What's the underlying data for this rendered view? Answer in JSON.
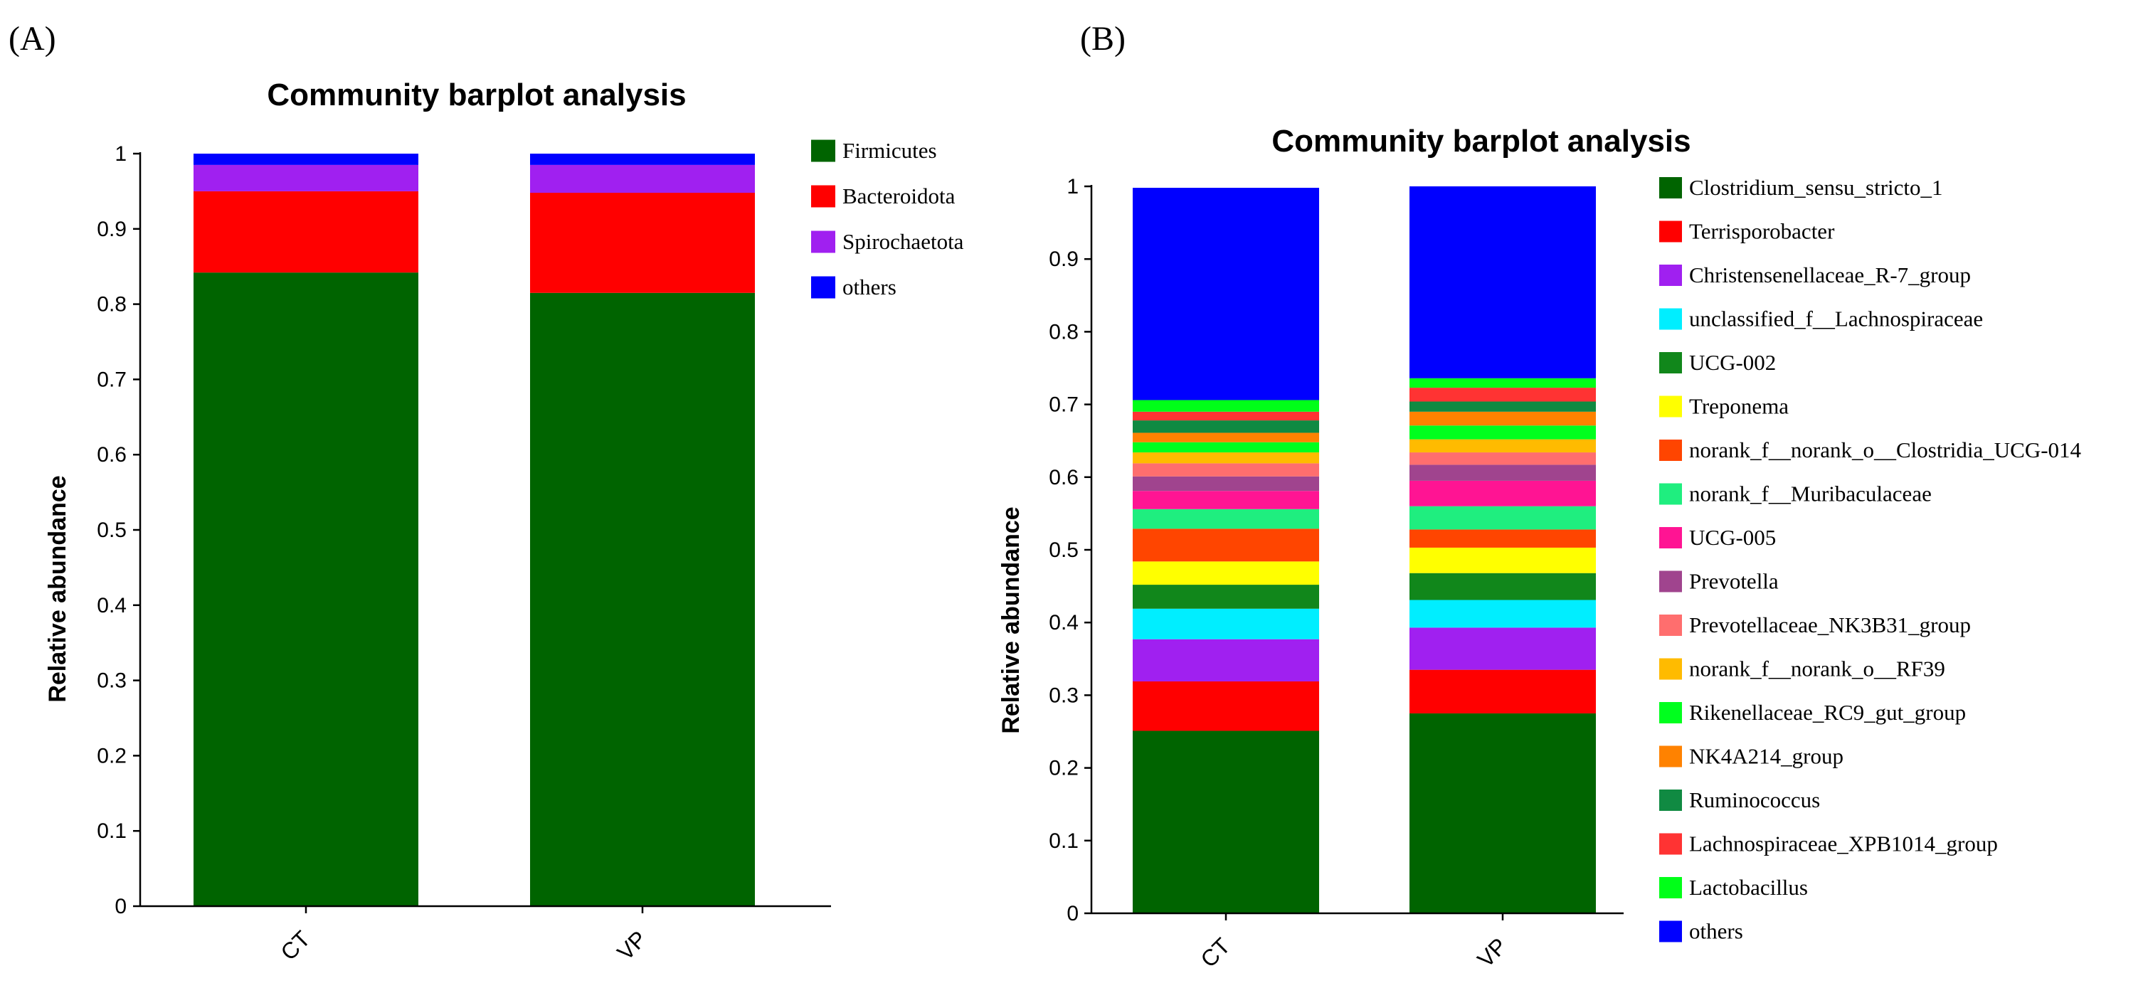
{
  "chart_data": [
    {
      "panel_label": "(A)",
      "type": "bar",
      "stacked": true,
      "title": "Community barplot analysis",
      "xlabel": "",
      "ylabel": "Relative abundance",
      "ylim": [
        0,
        1
      ],
      "yticks": [
        "0",
        "0.1",
        "0.2",
        "0.3",
        "0.4",
        "0.5",
        "0.6",
        "0.7",
        "0.8",
        "0.9",
        "1"
      ],
      "categories": [
        "CT",
        "VP"
      ],
      "legend_position": "right",
      "series": [
        {
          "name": "Firmicutes",
          "color": "#006400",
          "values": [
            0.842,
            0.815
          ]
        },
        {
          "name": "Bacteroidota",
          "color": "#ff0000",
          "values": [
            0.108,
            0.133
          ]
        },
        {
          "name": "Spirochaetota",
          "color": "#a020f0",
          "values": [
            0.035,
            0.037
          ]
        },
        {
          "name": "others",
          "color": "#0000ff",
          "values": [
            0.015,
            0.015
          ]
        }
      ]
    },
    {
      "panel_label": "(B)",
      "type": "bar",
      "stacked": true,
      "title": "Community barplot analysis",
      "xlabel": "",
      "ylabel": "Relative abundance",
      "ylim": [
        0,
        1
      ],
      "yticks": [
        "0",
        "0.1",
        "0.2",
        "0.3",
        "0.4",
        "0.5",
        "0.6",
        "0.7",
        "0.8",
        "0.9",
        "1"
      ],
      "categories": [
        "CT",
        "VP"
      ],
      "legend_position": "right",
      "series": [
        {
          "name": "Clostridium_sensu_stricto_1",
          "color": "#006400",
          "values": [
            0.251,
            0.275
          ]
        },
        {
          "name": "Terrisporobacter",
          "color": "#ff0000",
          "values": [
            0.068,
            0.06
          ]
        },
        {
          "name": "Christensenellaceae_R-7_group",
          "color": "#a020f0",
          "values": [
            0.058,
            0.058
          ]
        },
        {
          "name": "unclassified_f__Lachnospiraceae",
          "color": "#00eeff",
          "values": [
            0.042,
            0.038
          ]
        },
        {
          "name": "UCG-002",
          "color": "#11871b",
          "values": [
            0.033,
            0.037
          ]
        },
        {
          "name": "Treponema",
          "color": "#ffff00",
          "values": [
            0.032,
            0.035
          ]
        },
        {
          "name": "norank_f__norank_o__Clostridia_UCG-014",
          "color": "#ff4500",
          "values": [
            0.045,
            0.025
          ]
        },
        {
          "name": "norank_f__Muribaculaceae",
          "color": "#1fee7f",
          "values": [
            0.027,
            0.032
          ]
        },
        {
          "name": "UCG-005",
          "color": "#ff1493",
          "values": [
            0.025,
            0.035
          ]
        },
        {
          "name": "Prevotella",
          "color": "#a0448e",
          "values": [
            0.02,
            0.022
          ]
        },
        {
          "name": "Prevotellaceae_NK3B31_group",
          "color": "#ff6e6e",
          "values": [
            0.018,
            0.017
          ]
        },
        {
          "name": "norank_f__norank_o__RF39",
          "color": "#ffbb00",
          "values": [
            0.015,
            0.018
          ]
        },
        {
          "name": "Rikenellaceae_RC9_gut_group",
          "color": "#00ff1e",
          "values": [
            0.014,
            0.019
          ]
        },
        {
          "name": "NK4A214_group",
          "color": "#ff8200",
          "values": [
            0.013,
            0.019
          ]
        },
        {
          "name": "Ruminococcus",
          "color": "#108a42",
          "values": [
            0.017,
            0.014
          ]
        },
        {
          "name": "Lachnospiraceae_XPB1014_group",
          "color": "#ff3333",
          "values": [
            0.012,
            0.019
          ]
        },
        {
          "name": "Lactobacillus",
          "color": "#00ff18",
          "values": [
            0.016,
            0.013
          ]
        },
        {
          "name": "others",
          "color": "#0000ff",
          "values": [
            0.292,
            0.264
          ]
        }
      ]
    }
  ]
}
